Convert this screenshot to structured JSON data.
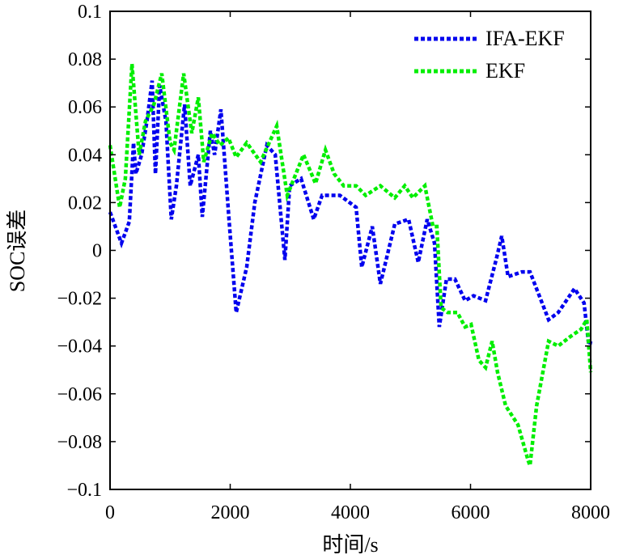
{
  "chart_data": {
    "type": "line",
    "title": "",
    "xlabel": "时间/s",
    "ylabel": "SOC误差",
    "xlim": [
      0,
      8000
    ],
    "ylim": [
      -0.1,
      0.1
    ],
    "xticks": [
      0,
      2000,
      4000,
      6000,
      8000
    ],
    "xtick_labels": [
      "0",
      "2000",
      "4000",
      "6000",
      "8000"
    ],
    "yticks": [
      0.1,
      0.08,
      0.06,
      0.04,
      0.02,
      0,
      -0.02,
      -0.04,
      -0.06,
      -0.08,
      -0.1
    ],
    "ytick_labels": [
      "0.1",
      "0.08",
      "0.06",
      "0.04",
      "0.02",
      "0",
      "−0.02",
      "−0.04",
      "−0.06",
      "−0.08",
      "−0.1"
    ],
    "grid": false,
    "legend_position": "top-right",
    "series": [
      {
        "name": "IFA-EKF",
        "color": "#0000ee",
        "style": "dotted",
        "x": [
          0,
          190,
          320,
          390,
          430,
          525,
          620,
          700,
          755,
          825,
          930,
          1020,
          1105,
          1240,
          1335,
          1470,
          1535,
          1670,
          1740,
          1845,
          1980,
          2100,
          2275,
          2410,
          2610,
          2750,
          2910,
          2990,
          3180,
          3390,
          3530,
          3825,
          4095,
          4190,
          4365,
          4500,
          4740,
          4970,
          5130,
          5280,
          5400,
          5480,
          5600,
          5740,
          5910,
          6050,
          6250,
          6425,
          6520,
          6625,
          6855,
          6990,
          7300,
          7460,
          7730,
          7890,
          7975,
          8000
        ],
        "y": [
          0.016,
          0.003,
          0.012,
          0.045,
          0.032,
          0.04,
          0.055,
          0.071,
          0.032,
          0.069,
          0.054,
          0.013,
          0.027,
          0.061,
          0.027,
          0.04,
          0.014,
          0.05,
          0.04,
          0.059,
          0.013,
          -0.026,
          -0.007,
          0.02,
          0.044,
          0.04,
          -0.004,
          0.027,
          0.03,
          0.013,
          0.023,
          0.023,
          0.018,
          -0.007,
          0.01,
          -0.014,
          0.011,
          0.013,
          -0.005,
          0.013,
          0.003,
          -0.032,
          -0.012,
          -0.012,
          -0.021,
          -0.019,
          -0.021,
          -0.004,
          0.006,
          -0.011,
          -0.009,
          -0.009,
          -0.029,
          -0.026,
          -0.016,
          -0.022,
          -0.041,
          -0.038
        ]
      },
      {
        "name": "EKF",
        "color": "#00ee00",
        "style": "dotted",
        "x": [
          0,
          160,
          255,
          365,
          485,
          590,
          730,
          860,
          1000,
          1065,
          1225,
          1360,
          1470,
          1560,
          1700,
          1830,
          1970,
          2100,
          2275,
          2505,
          2775,
          2950,
          3220,
          3420,
          3585,
          3730,
          3890,
          4095,
          4255,
          4500,
          4740,
          4905,
          5040,
          5240,
          5375,
          5440,
          5510,
          5620,
          5780,
          5910,
          6010,
          6140,
          6250,
          6360,
          6450,
          6585,
          6790,
          6960,
          6990,
          7100,
          7300,
          7460,
          7665,
          7840,
          7935,
          8000
        ],
        "y": [
          0.044,
          0.018,
          0.03,
          0.078,
          0.04,
          0.054,
          0.061,
          0.074,
          0.045,
          0.042,
          0.074,
          0.049,
          0.064,
          0.037,
          0.049,
          0.044,
          0.047,
          0.039,
          0.045,
          0.037,
          0.052,
          0.023,
          0.04,
          0.028,
          0.042,
          0.032,
          0.027,
          0.027,
          0.023,
          0.027,
          0.022,
          0.027,
          0.022,
          0.027,
          0.01,
          0.01,
          -0.024,
          -0.026,
          -0.026,
          -0.032,
          -0.031,
          -0.046,
          -0.049,
          -0.038,
          -0.051,
          -0.065,
          -0.073,
          -0.088,
          -0.09,
          -0.065,
          -0.038,
          -0.04,
          -0.036,
          -0.033,
          -0.029,
          -0.051
        ]
      }
    ]
  }
}
